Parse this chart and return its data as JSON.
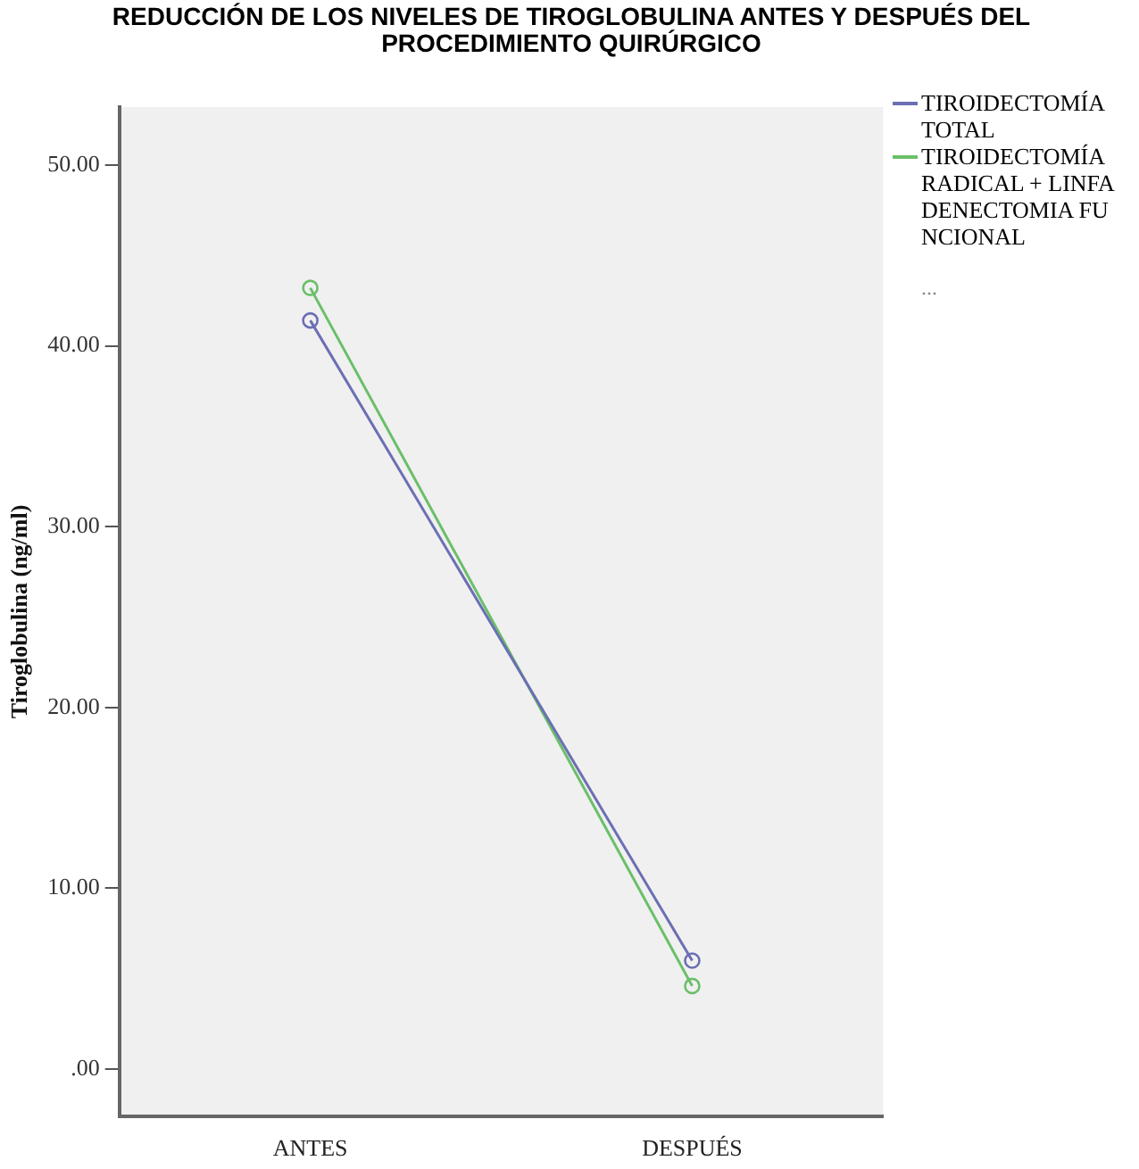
{
  "chart_data": {
    "type": "line",
    "title": "REDUCCIÓN DE LOS NIVELES DE TIROGLOBULINA ANTES Y DESPUÉS DEL PROCEDIMIENTO QUIRÚRGICO",
    "ylabel": "Tiroglobulina (ng/ml)",
    "categories": [
      "ANTES",
      "DESPUÉS"
    ],
    "series": [
      {
        "name": "TIROIDECTOMÍA TOTAL",
        "color": "#6b6fb3",
        "values": [
          41.4,
          6.0
        ]
      },
      {
        "name": "TIROIDECTOMÍA RADICAL + LINFADENECTOMIA FUNCIONAL",
        "color": "#6abf69",
        "values": [
          43.2,
          4.6
        ]
      }
    ],
    "ylim": [
      -2.6,
      53.2
    ],
    "yticks": [
      {
        "value": 0,
        "label": ".00"
      },
      {
        "value": 10,
        "label": "10.00"
      },
      {
        "value": 20,
        "label": "20.00"
      },
      {
        "value": 30,
        "label": "30.00"
      },
      {
        "value": 40,
        "label": "40.00"
      },
      {
        "value": 50,
        "label": "50.00"
      }
    ],
    "annotations": [
      "..."
    ],
    "grid": false,
    "legend": "right",
    "marker": "circle",
    "line_style": "solid"
  }
}
